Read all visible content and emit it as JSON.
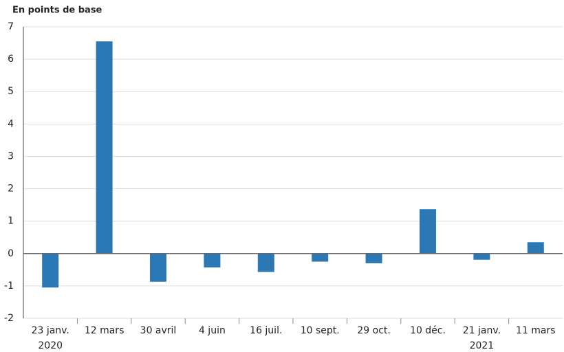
{
  "chart_data": {
    "type": "bar",
    "title": "En points de base",
    "categories": [
      "23 janv.\n2020",
      "12 mars",
      "30 avril",
      "4 juin",
      "16 juil.",
      "10 sept.",
      "29 oct.",
      "10 déc.",
      "21 janv.\n2021",
      "11 mars"
    ],
    "values": [
      -1.05,
      6.55,
      -0.87,
      -0.43,
      -0.57,
      -0.25,
      -0.3,
      1.37,
      -0.19,
      0.35
    ],
    "color": "#2b78b5",
    "ylim": [
      -2,
      7
    ],
    "yticks": [
      -2,
      -1,
      0,
      1,
      2,
      3,
      4,
      5,
      6,
      7
    ],
    "grid": true
  }
}
